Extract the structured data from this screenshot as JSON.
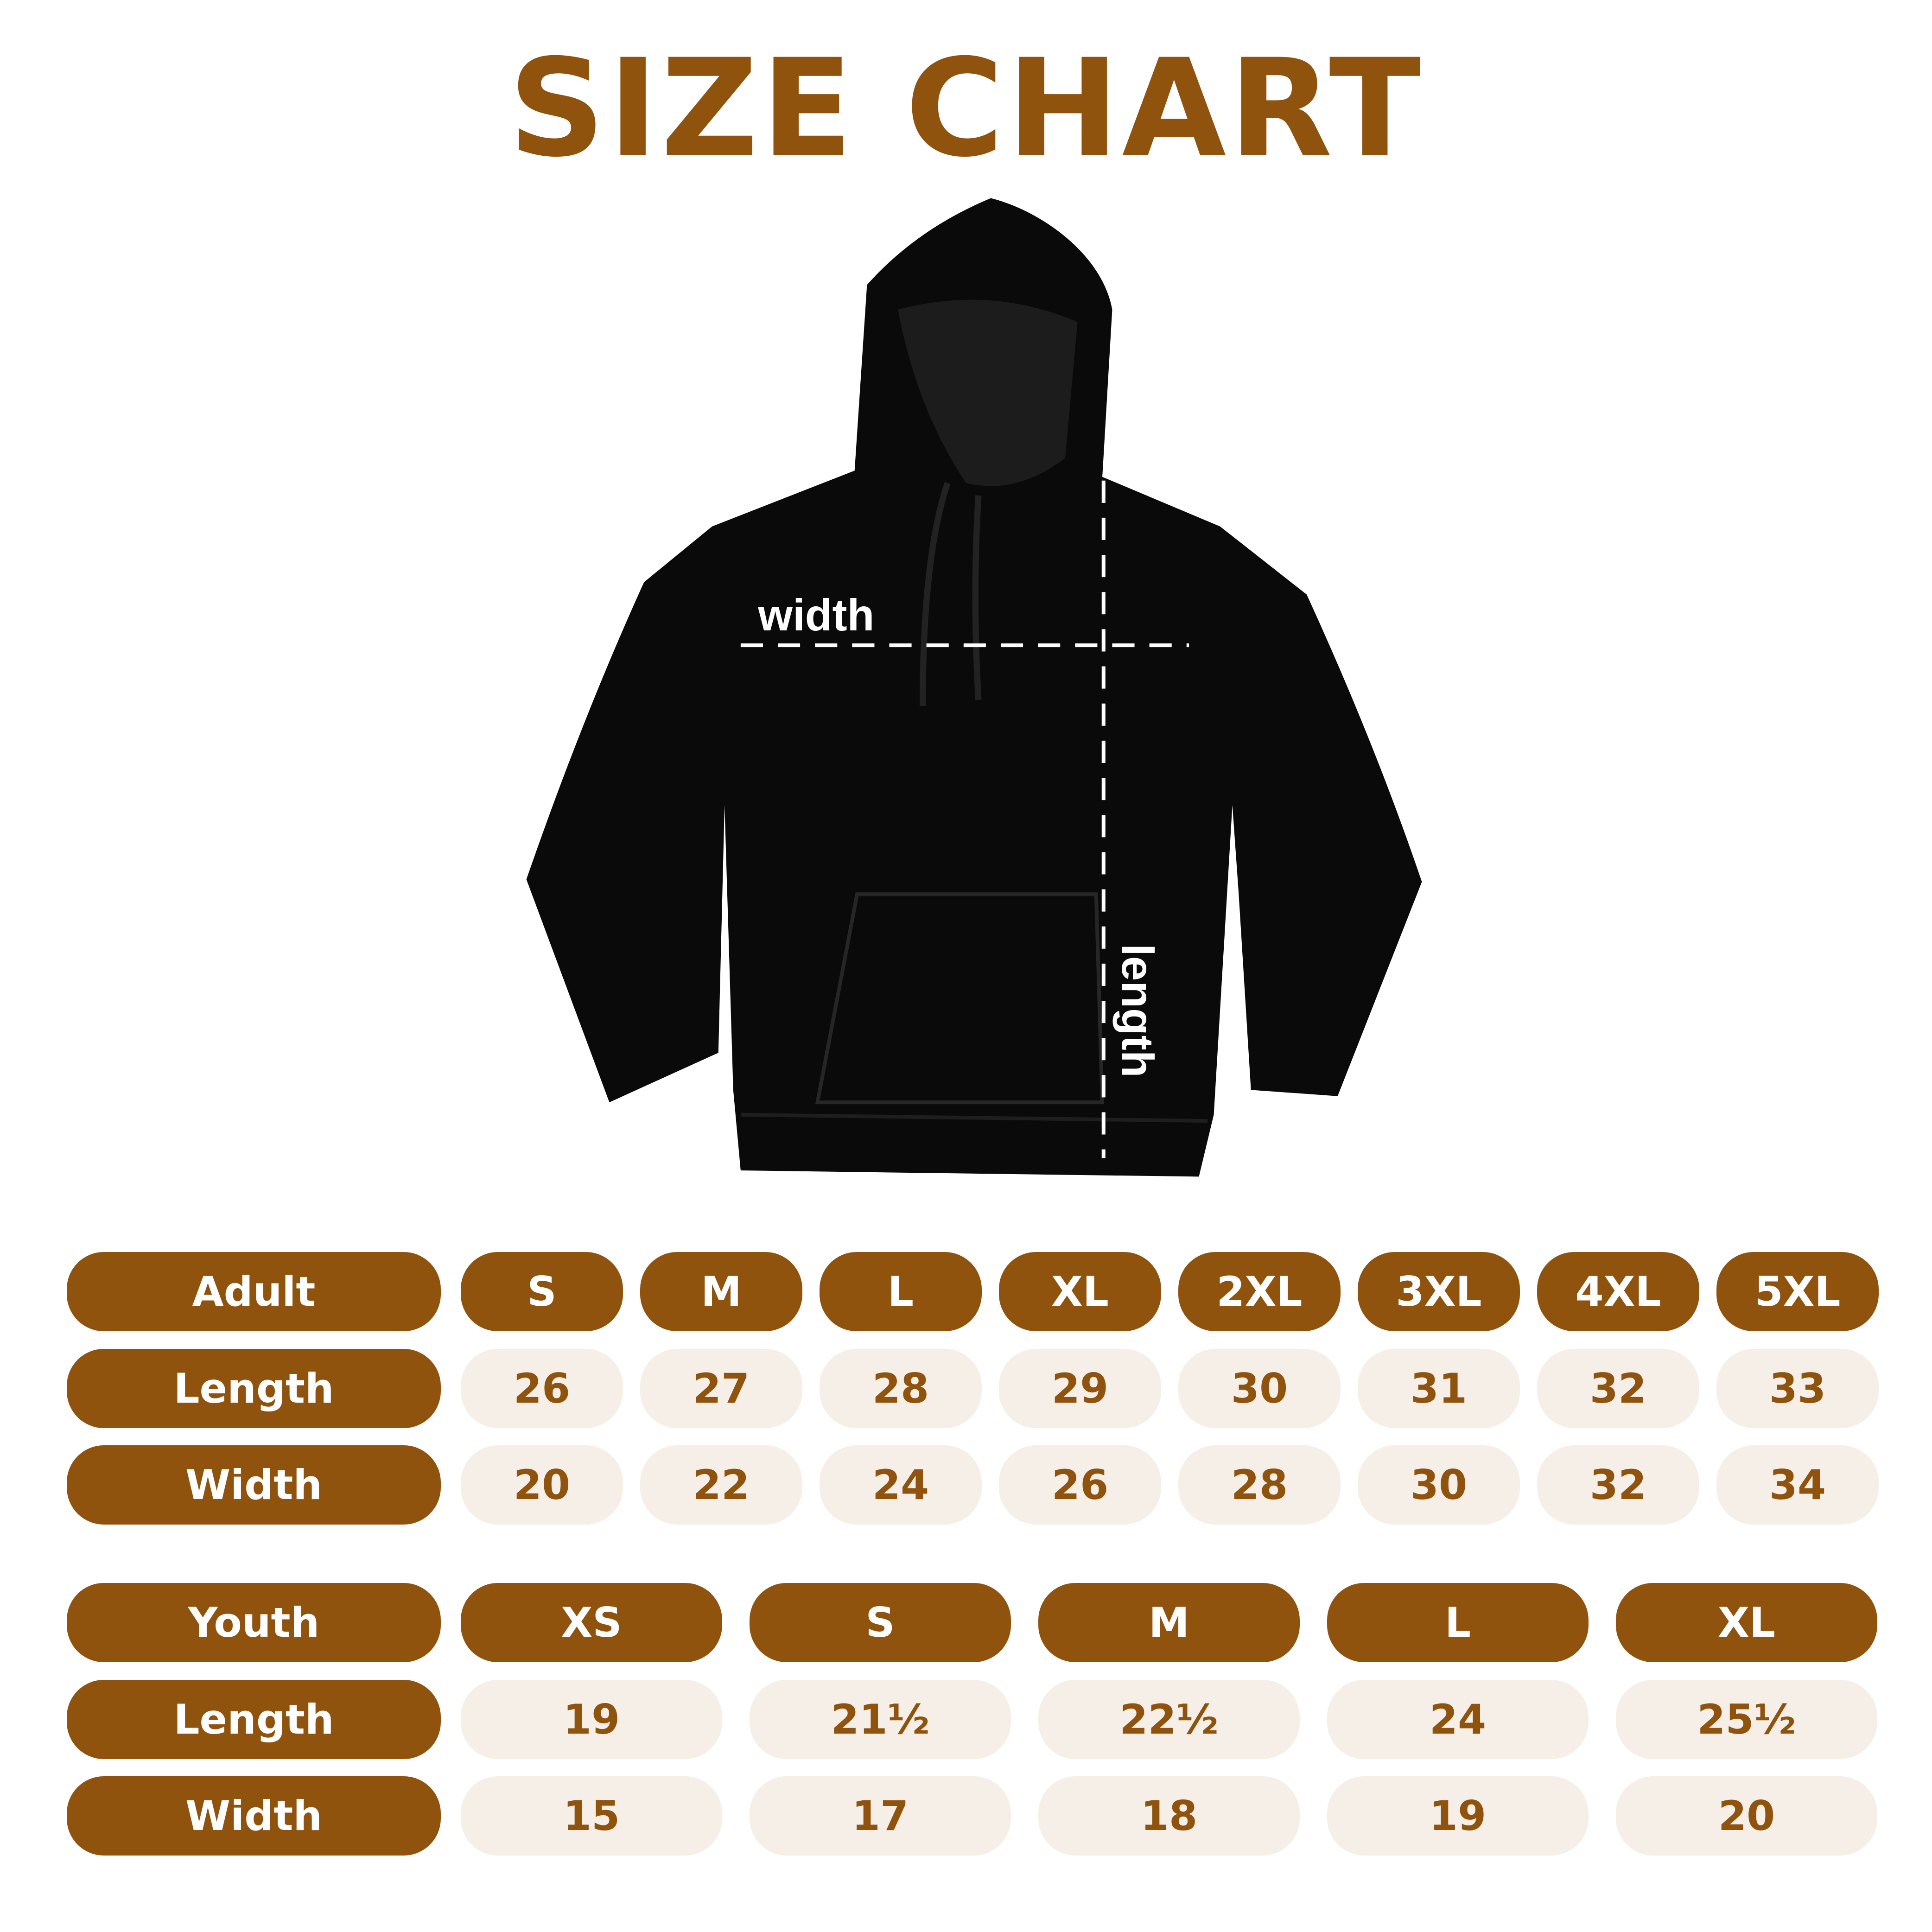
{
  "title": "SIZE CHART",
  "diagram": {
    "width_label": "width",
    "length_label": "length"
  },
  "colors": {
    "brand": "#8f530e",
    "cell": "#f5efe7",
    "garment": "#0a0a0a"
  },
  "adult": {
    "header": "Adult",
    "sizes": [
      "S",
      "M",
      "L",
      "XL",
      "2XL",
      "3XL",
      "4XL",
      "5XL"
    ],
    "rows": [
      {
        "label": "Length",
        "values": [
          "26",
          "27",
          "28",
          "29",
          "30",
          "31",
          "32",
          "33"
        ]
      },
      {
        "label": "Width",
        "values": [
          "20",
          "22",
          "24",
          "26",
          "28",
          "30",
          "32",
          "34"
        ]
      }
    ]
  },
  "youth": {
    "header": "Youth",
    "sizes": [
      "XS",
      "S",
      "M",
      "L",
      "XL"
    ],
    "rows": [
      {
        "label": "Length",
        "values": [
          "19",
          "21½",
          "22½",
          "24",
          "25½"
        ]
      },
      {
        "label": "Width",
        "values": [
          "15",
          "17",
          "18",
          "19",
          "20"
        ]
      }
    ]
  }
}
